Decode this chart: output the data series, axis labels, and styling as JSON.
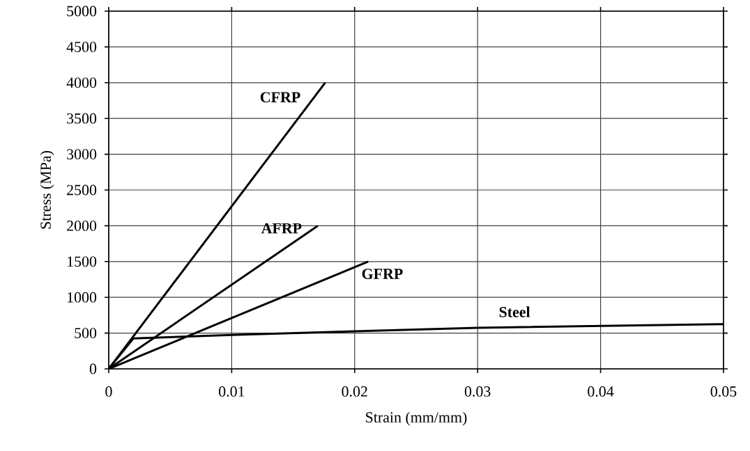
{
  "chart_data": {
    "type": "line",
    "xlabel": "Strain (mm/mm)",
    "ylabel": "Stress (MPa)",
    "xlim": [
      0,
      0.05
    ],
    "ylim": [
      0,
      5000
    ],
    "xticks": [
      0,
      0.01,
      0.02,
      0.03,
      0.04,
      0.05
    ],
    "yticks": [
      0,
      500,
      1000,
      1500,
      2000,
      2500,
      3000,
      3500,
      4000,
      4500,
      5000
    ],
    "grid": true,
    "legend": false,
    "marker": "none",
    "line_style": "solid",
    "series": [
      {
        "name": "CFRP",
        "color": "#000000",
        "x": [
          0,
          0.0176
        ],
        "values": [
          0,
          4000
        ]
      },
      {
        "name": "AFRP",
        "color": "#000000",
        "x": [
          0,
          0.017
        ],
        "values": [
          0,
          2000
        ]
      },
      {
        "name": "GFRP",
        "color": "#000000",
        "x": [
          0,
          0.0211
        ],
        "values": [
          0,
          1500
        ]
      },
      {
        "name": "Steel",
        "color": "#000000",
        "x": [
          0,
          0.002,
          0.01,
          0.02,
          0.03,
          0.04,
          0.05
        ],
        "values": [
          0,
          425,
          475,
          525,
          575,
          600,
          625
        ]
      }
    ]
  }
}
